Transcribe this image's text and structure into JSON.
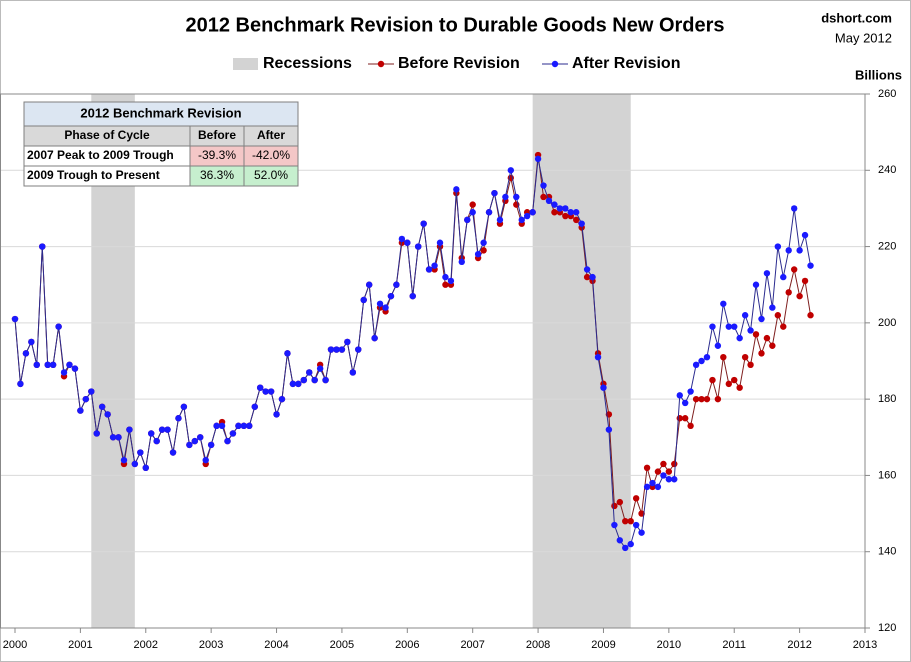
{
  "chart_data": {
    "type": "line",
    "title": "2012 Benchmark Revision to Durable Goods New Orders",
    "source": "dshort.com",
    "date": "May 2012",
    "y_label": "Billions",
    "grid": true,
    "xlim": [
      2000,
      2013
    ],
    "xticks": [
      2000,
      2001,
      2002,
      2003,
      2004,
      2005,
      2006,
      2007,
      2008,
      2009,
      2010,
      2011,
      2012,
      2013
    ],
    "ylim": [
      120,
      260
    ],
    "yticks": [
      120,
      140,
      160,
      180,
      200,
      220,
      240,
      260
    ],
    "recessions": {
      "name": "Recessions",
      "color": "#d3d3d3",
      "spans": [
        [
          2001.167,
          2001.833
        ],
        [
          2007.917,
          2009.417
        ]
      ]
    },
    "x": [
      2000,
      2000.083,
      2000.167,
      2000.25,
      2000.333,
      2000.417,
      2000.5,
      2000.583,
      2000.667,
      2000.75,
      2000.833,
      2000.917,
      2001,
      2001.083,
      2001.167,
      2001.25,
      2001.333,
      2001.417,
      2001.5,
      2001.583,
      2001.667,
      2001.75,
      2001.833,
      2001.917,
      2002,
      2002.083,
      2002.167,
      2002.25,
      2002.333,
      2002.417,
      2002.5,
      2002.583,
      2002.667,
      2002.75,
      2002.833,
      2002.917,
      2003,
      2003.083,
      2003.167,
      2003.25,
      2003.333,
      2003.417,
      2003.5,
      2003.583,
      2003.667,
      2003.75,
      2003.833,
      2003.917,
      2004,
      2004.083,
      2004.167,
      2004.25,
      2004.333,
      2004.417,
      2004.5,
      2004.583,
      2004.667,
      2004.75,
      2004.833,
      2004.917,
      2005,
      2005.083,
      2005.167,
      2005.25,
      2005.333,
      2005.417,
      2005.5,
      2005.583,
      2005.667,
      2005.75,
      2005.833,
      2005.917,
      2006,
      2006.083,
      2006.167,
      2006.25,
      2006.333,
      2006.417,
      2006.5,
      2006.583,
      2006.667,
      2006.75,
      2006.833,
      2006.917,
      2007,
      2007.083,
      2007.167,
      2007.25,
      2007.333,
      2007.417,
      2007.5,
      2007.583,
      2007.667,
      2007.75,
      2007.833,
      2007.917,
      2008,
      2008.083,
      2008.167,
      2008.25,
      2008.333,
      2008.417,
      2008.5,
      2008.583,
      2008.667,
      2008.75,
      2008.833,
      2008.917,
      2009,
      2009.083,
      2009.167,
      2009.25,
      2009.333,
      2009.417,
      2009.5,
      2009.583,
      2009.667,
      2009.75,
      2009.833,
      2009.917,
      2010,
      2010.083,
      2010.167,
      2010.25,
      2010.333,
      2010.417,
      2010.5,
      2010.583,
      2010.667,
      2010.75,
      2010.833,
      2010.917,
      2011,
      2011.083,
      2011.167,
      2011.25,
      2011.333,
      2011.417,
      2011.5,
      2011.583,
      2011.667,
      2011.75,
      2011.833,
      2011.917,
      2012,
      2012.083,
      2012.167
    ],
    "series": [
      {
        "name": "Before Revision",
        "color": "#c00000",
        "line_color": "#7f1f1f",
        "values": [
          201,
          184,
          192,
          195,
          189,
          220,
          189,
          189,
          199,
          186,
          189,
          188,
          177,
          180,
          182,
          171,
          178,
          176,
          170,
          170,
          163,
          172,
          163,
          166,
          162,
          171,
          169,
          172,
          172,
          166,
          175,
          178,
          168,
          169,
          170,
          163,
          168,
          173,
          174,
          169,
          171,
          173,
          173,
          173,
          178,
          183,
          182,
          182,
          176,
          180,
          192,
          184,
          184,
          185,
          187,
          185,
          189,
          185,
          193,
          193,
          193,
          195,
          187,
          193,
          206,
          210,
          196,
          204,
          203,
          207,
          210,
          221,
          221,
          207,
          220,
          226,
          214,
          214,
          220,
          210,
          210,
          234,
          217,
          227,
          231,
          217,
          219,
          229,
          234,
          226,
          232,
          238,
          231,
          226,
          229,
          229,
          244,
          233,
          233,
          229,
          229,
          228,
          228,
          227,
          225,
          212,
          211,
          192,
          184,
          176,
          152,
          153,
          148,
          148,
          154,
          150,
          162,
          157,
          161,
          163,
          161,
          163,
          175,
          175,
          173,
          180,
          180,
          180,
          185,
          180,
          191,
          184,
          185,
          183,
          191,
          189,
          197,
          192,
          196,
          194,
          202,
          199,
          208,
          214,
          207,
          211,
          202
        ]
      },
      {
        "name": "After Revision",
        "color": "#1a1aff",
        "line_color": "#2b2b8f",
        "values": [
          201,
          184,
          192,
          195,
          189,
          220,
          189,
          189,
          199,
          187,
          189,
          188,
          177,
          180,
          182,
          171,
          178,
          176,
          170,
          170,
          164,
          172,
          163,
          166,
          162,
          171,
          169,
          172,
          172,
          166,
          175,
          178,
          168,
          169,
          170,
          164,
          168,
          173,
          173,
          169,
          171,
          173,
          173,
          173,
          178,
          183,
          182,
          182,
          176,
          180,
          192,
          184,
          184,
          185,
          187,
          185,
          188,
          185,
          193,
          193,
          193,
          195,
          187,
          193,
          206,
          210,
          196,
          205,
          204,
          207,
          210,
          222,
          221,
          207,
          220,
          226,
          214,
          215,
          221,
          212,
          211,
          235,
          216,
          227,
          229,
          218,
          221,
          229,
          234,
          227,
          233,
          240,
          233,
          227,
          228,
          229,
          243,
          236,
          232,
          231,
          230,
          230,
          229,
          229,
          226,
          214,
          212,
          191,
          183,
          172,
          147,
          143,
          141,
          142,
          147,
          145,
          157,
          158,
          157,
          160,
          159,
          159,
          181,
          179,
          182,
          189,
          190,
          191,
          199,
          194,
          205,
          199,
          199,
          196,
          202,
          198,
          210,
          201,
          213,
          204,
          220,
          212,
          219,
          230,
          219,
          223,
          215
        ]
      }
    ],
    "table": {
      "title": "2012 Benchmark Revision",
      "header": [
        "Phase of Cycle",
        "Before",
        "After"
      ],
      "rows": [
        [
          "2007 Peak to 2009 Trough",
          "-39.3%",
          "-42.0%"
        ],
        [
          "2009 Trough to Present",
          "36.3%",
          "52.0%"
        ]
      ]
    }
  }
}
